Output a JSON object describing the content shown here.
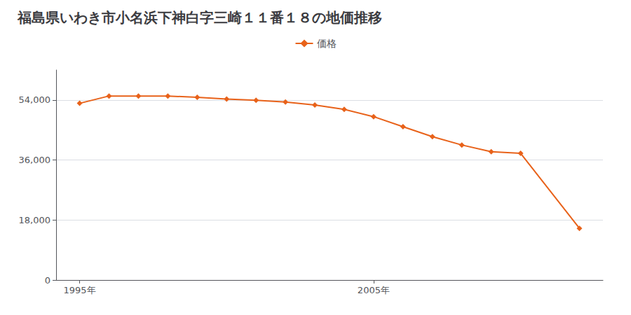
{
  "chart_data": {
    "type": "line",
    "title": "福島県いわき市小名浜下神白字三崎１１番１８の地価推移",
    "x": [
      1995,
      1996,
      1997,
      1998,
      1999,
      2000,
      2001,
      2002,
      2003,
      2004,
      2005,
      2006,
      2007,
      2008,
      2009,
      2010,
      2012
    ],
    "series": [
      {
        "name": "価格",
        "color": "#e8621a",
        "marker": "diamond",
        "values": [
          53000,
          55200,
          55200,
          55200,
          54800,
          54300,
          53900,
          53400,
          52500,
          51200,
          49000,
          46000,
          43000,
          40500,
          38500,
          38000,
          15500
        ]
      }
    ],
    "xlim": [
      1994.2,
      2012.8
    ],
    "xticks": [
      {
        "value": 1995,
        "label": "1995年"
      },
      {
        "value": 2005,
        "label": "2005年"
      }
    ],
    "ylim": [
      0,
      63000
    ],
    "yticks": [
      0,
      {
        "value": 18000,
        "label": "18,000"
      },
      {
        "value": 36000,
        "label": "36,000"
      },
      {
        "value": 54000,
        "label": "54,000"
      }
    ],
    "grid": true,
    "legend": "top"
  }
}
